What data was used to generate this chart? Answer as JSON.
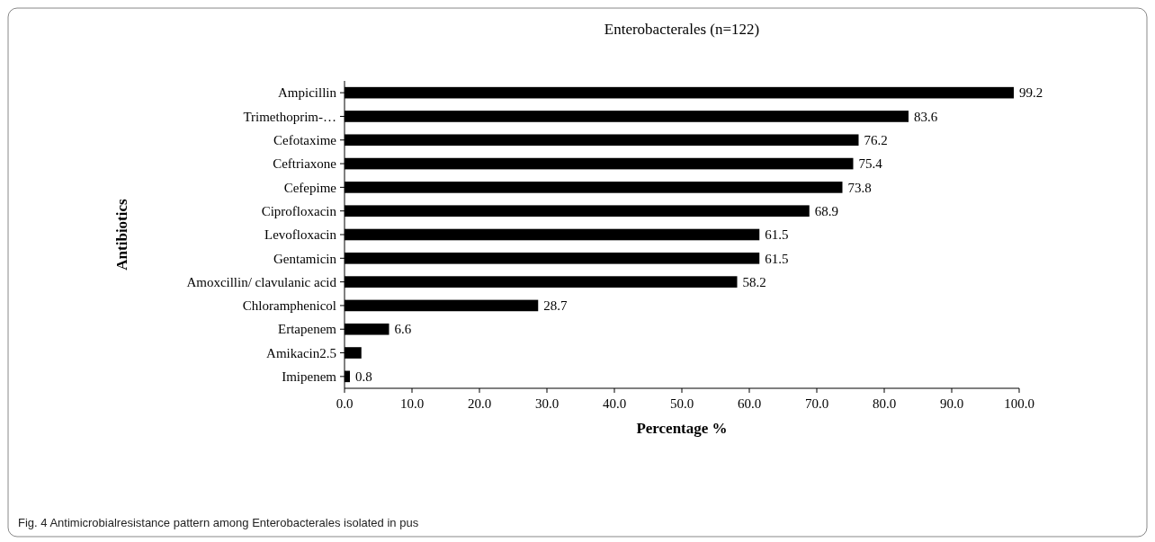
{
  "chart_data": {
    "type": "bar",
    "orientation": "horizontal",
    "title": "Enterobacterales (n=122)",
    "xlabel": "Percentage %",
    "ylabel": "Antibiotics",
    "categories": [
      "Ampicillin",
      "Trimethoprim-…",
      "Cefotaxime",
      "Ceftriaxone",
      "Cefepime",
      "Ciprofloxacin",
      "Levofloxacin",
      "Gentamicin",
      "Amoxcillin/ clavulanic acid",
      "Chloramphenicol",
      "Ertapenem",
      "Amikacin2.5",
      "Imipenem"
    ],
    "values": [
      99.2,
      83.6,
      76.2,
      75.4,
      73.8,
      68.9,
      61.5,
      61.5,
      58.2,
      28.7,
      6.6,
      2.5,
      0.8
    ],
    "value_labels": [
      "99.2",
      "83.6",
      "76.2",
      "75.4",
      "73.8",
      "68.9",
      "61.5",
      "61.5",
      "58.2",
      "28.7",
      "6.6",
      null,
      "0.8"
    ],
    "color": "#000000",
    "xlim": [
      0,
      100
    ],
    "xticks": [
      {
        "value": 0,
        "label": "0.0"
      },
      {
        "value": 10,
        "label": "10.0"
      },
      {
        "value": 20,
        "label": "20.0"
      },
      {
        "value": 30,
        "label": "30.0"
      },
      {
        "value": 40,
        "label": "40.0"
      },
      {
        "value": 50,
        "label": "50.0"
      },
      {
        "value": 60,
        "label": "60.0"
      },
      {
        "value": 70,
        "label": "70.0"
      },
      {
        "value": 80,
        "label": "80.0"
      },
      {
        "value": 90,
        "label": "90.0"
      },
      {
        "value": 100,
        "label": "100.0"
      }
    ],
    "grid": false,
    "annotations": [
      "Fig. 4  Antimicrobialresistance pattern among Enterobacterales isolated in pus"
    ]
  }
}
